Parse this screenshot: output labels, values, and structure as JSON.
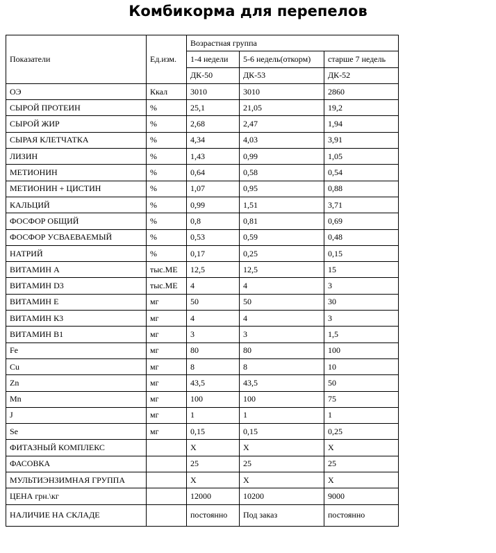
{
  "title": "Комбикорма для перепелов",
  "header": {
    "indicator": "Показатели",
    "unit": "Ед.изм.",
    "age_group": "Возрастная группа",
    "ages": [
      "1-4 недели",
      "5-6 недель(откорм)",
      "старше 7 недель"
    ],
    "codes": [
      "ДК-50",
      "ДК-53",
      "ДК-52"
    ]
  },
  "rows": [
    {
      "name": "ОЭ",
      "unit": "Ккал",
      "values": [
        "3010",
        "3010",
        "2860"
      ]
    },
    {
      "name": "СЫРОЙ ПРОТЕИН",
      "unit": "%",
      "values": [
        "25,1",
        "21,05",
        "19,2"
      ]
    },
    {
      "name": "СЫРОЙ ЖИР",
      "unit": "%",
      "values": [
        "2,68",
        "2,47",
        "1,94"
      ]
    },
    {
      "name": "СЫРАЯ КЛЕТЧАТКА",
      "unit": "%",
      "values": [
        "4,34",
        "4,03",
        "3,91"
      ]
    },
    {
      "name": "ЛИЗИН",
      "unit": "%",
      "values": [
        "1,43",
        "0,99",
        "1,05"
      ]
    },
    {
      "name": "МЕТИОНИН",
      "unit": "%",
      "values": [
        "0,64",
        "0,58",
        "0,54"
      ]
    },
    {
      "name": "МЕТИОНИН + ЦИСТИН",
      "unit": "%",
      "values": [
        "1,07",
        "0,95",
        "0,88"
      ]
    },
    {
      "name": "КАЛЬЦИЙ",
      "unit": "%",
      "values": [
        "0,99",
        "1,51",
        "3,71"
      ]
    },
    {
      "name": "ФОСФОР ОБЩИЙ",
      "unit": "%",
      "values": [
        "0,8",
        "0,81",
        "0,69"
      ]
    },
    {
      "name": "ФОСФОР УСВАЕВАЕМЫЙ",
      "unit": "%",
      "values": [
        "0,53",
        "0,59",
        "0,48"
      ]
    },
    {
      "name": "НАТРИЙ",
      "unit": "%",
      "values": [
        "0,17",
        "0,25",
        "0,15"
      ]
    },
    {
      "name": "ВИТАМИН А",
      "unit": "тыс.МЕ",
      "values": [
        "12,5",
        "12,5",
        "15"
      ]
    },
    {
      "name": "ВИТАМИН D3",
      "unit": "тыс.МЕ",
      "values": [
        "4",
        "4",
        "3"
      ]
    },
    {
      "name": "ВИТАМИН Е",
      "unit": "мг",
      "values": [
        "50",
        "50",
        "30"
      ]
    },
    {
      "name": "ВИТАМИН К3",
      "unit": "мг",
      "values": [
        "4",
        "4",
        "3"
      ]
    },
    {
      "name": "ВИТАМИН В1",
      "unit": "мг",
      "values": [
        "3",
        "3",
        "1,5"
      ]
    },
    {
      "name": "Fe",
      "unit": "мг",
      "values": [
        "80",
        "80",
        "100"
      ]
    },
    {
      "name": "Cu",
      "unit": "мг",
      "values": [
        "8",
        "8",
        "10"
      ]
    },
    {
      "name": "Zn",
      "unit": "мг",
      "values": [
        "43,5",
        "43,5",
        "50"
      ]
    },
    {
      "name": "Mn",
      "unit": "мг",
      "values": [
        "100",
        "100",
        "75"
      ]
    },
    {
      "name": "J",
      "unit": "мг",
      "values": [
        "1",
        "1",
        "1"
      ]
    },
    {
      "name": "Se",
      "unit": "мг",
      "values": [
        "0,15",
        "0,15",
        "0,25"
      ]
    },
    {
      "name": "ФИТАЗНЫЙ КОМПЛЕКС",
      "unit": "",
      "values": [
        "X",
        "X",
        "X"
      ]
    },
    {
      "name": "ФАСОВКА",
      "unit": "",
      "values": [
        "25",
        "25",
        "25"
      ]
    },
    {
      "name": "МУЛЬТИЭНЗИМНАЯ ГРУППА",
      "unit": "",
      "values": [
        "X",
        "X",
        "X"
      ]
    },
    {
      "name": "ЦЕНА грн.\\кг",
      "unit": "",
      "values": [
        "12000",
        "10200",
        "9000"
      ]
    },
    {
      "name": "НАЛИЧИЕ НА СКЛАДЕ",
      "unit": "",
      "values": [
        "постоянно",
        "Под заказ",
        "постоянно"
      ]
    }
  ]
}
